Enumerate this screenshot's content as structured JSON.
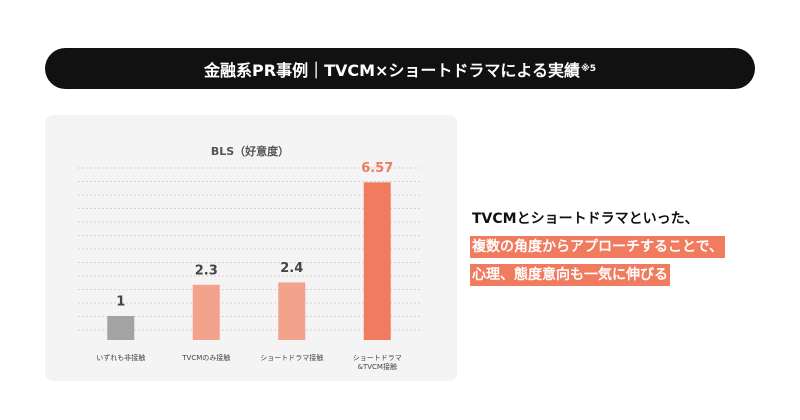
{
  "header": {
    "title": "金融系PR事例｜TVCM×ショートドラマによる実績",
    "note": "※5"
  },
  "chart_data": {
    "type": "bar",
    "title": "BLS（好意度）",
    "categories": [
      "いずれも非接触",
      "TVCMのみ接触",
      "ショートドラマ接触",
      "ショートドラマ\n&TVCM接触"
    ],
    "values": [
      1,
      2.3,
      2.4,
      6.57
    ],
    "colors": [
      "#a3a3a3",
      "#f3a28c",
      "#f3a28c",
      "#f07b5f"
    ],
    "value_label_colors": [
      "#444444",
      "#444444",
      "#444444",
      "#f07b5f"
    ],
    "ylim": [
      0,
      7
    ],
    "grid": true
  },
  "message": {
    "lines": [
      "TVCMとショートドラマといった、",
      "複数の角度からアプローチすることで、",
      "心理、態度意向も一気に伸びる"
    ],
    "highlight_color": "#f07b5f"
  }
}
